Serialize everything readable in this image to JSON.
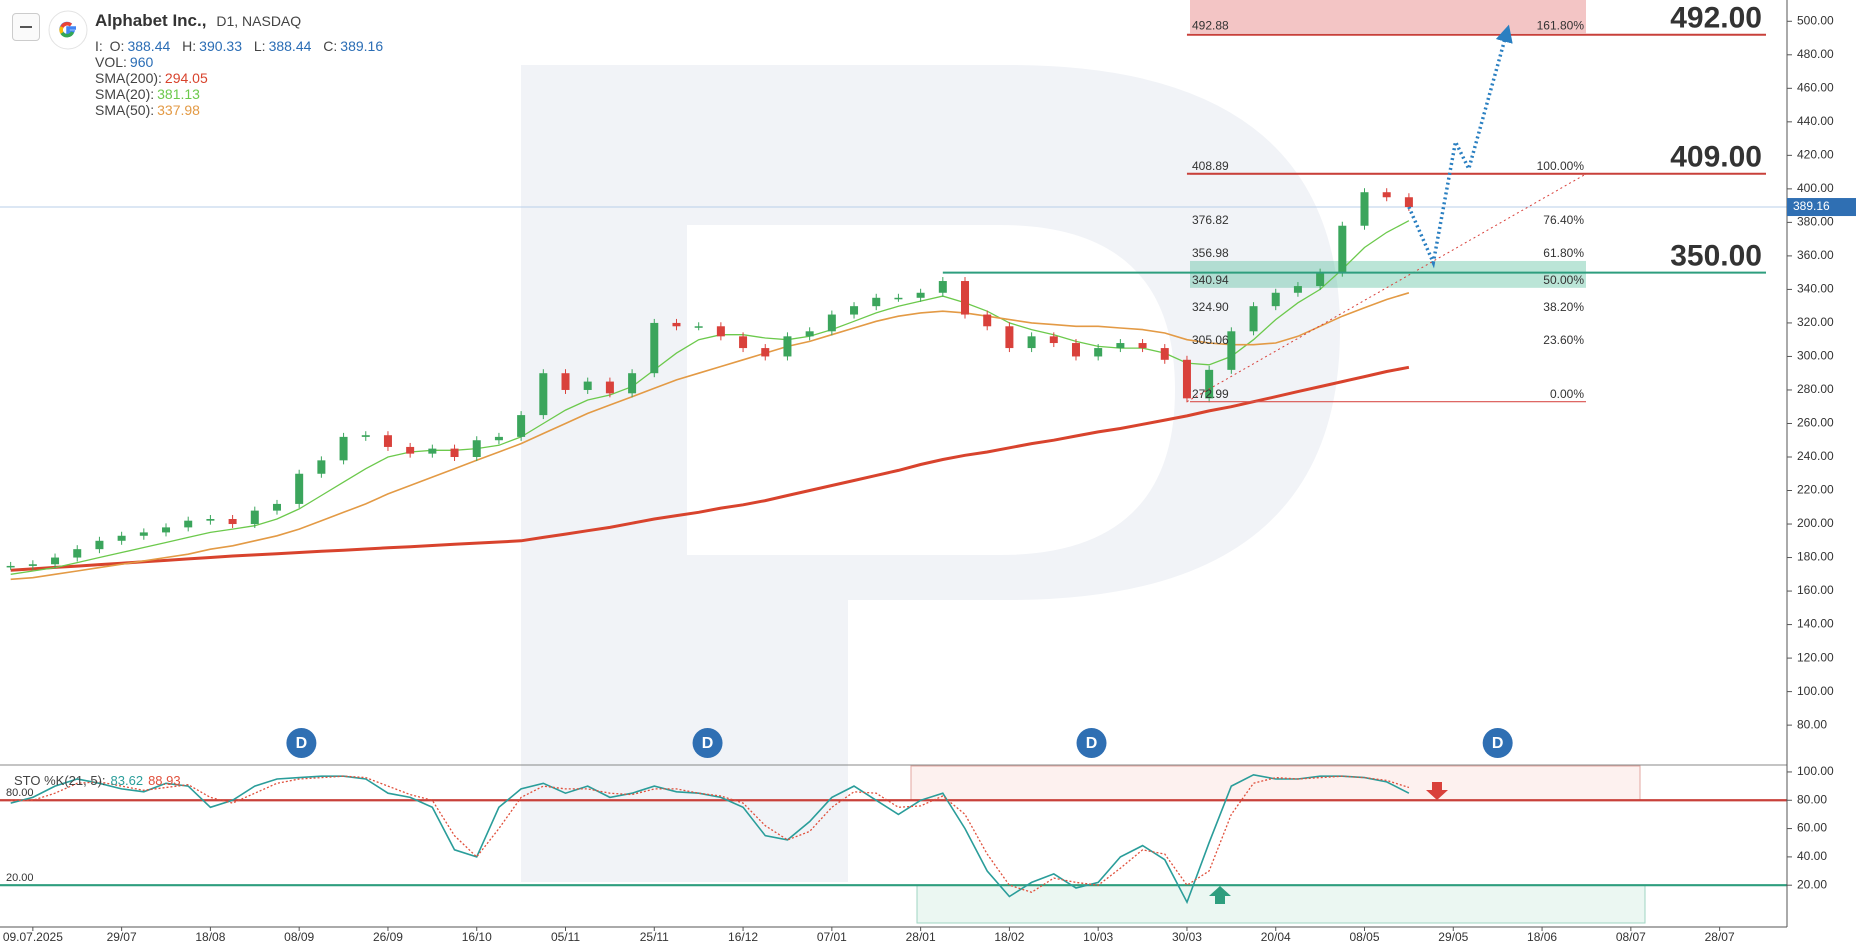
{
  "chart_data": [
    {
      "type": "candlestick",
      "title": "Alphabet Inc.,",
      "subtitle": "D1, NASDAQ",
      "info_label": "I:",
      "ohlc": [
        {
          "label": "O:",
          "value": 388.44
        },
        {
          "label": "H:",
          "value": 390.33
        },
        {
          "label": "L:",
          "value": 388.44
        },
        {
          "label": "C:",
          "value": 389.16
        }
      ],
      "volume": {
        "label": "VOL:",
        "value": 960
      },
      "categories": [
        null,
        "09.07.2025",
        null,
        null,
        null,
        "29/07",
        null,
        null,
        null,
        "18/08",
        null,
        null,
        null,
        "08/09",
        null,
        null,
        null,
        "26/09",
        null,
        null,
        null,
        "16/10",
        null,
        null,
        null,
        "05/11",
        null,
        null,
        null,
        "25/11",
        null,
        null,
        null,
        "16/12",
        null,
        null,
        null,
        "07/01",
        null,
        null,
        null,
        "28/01",
        null,
        null,
        null,
        "18/02",
        null,
        null,
        null,
        "10/03",
        null,
        null,
        null,
        "30/03",
        null,
        null,
        null,
        "20/04",
        null,
        null,
        null,
        "08/05",
        null,
        null,
        null,
        "29/05",
        null,
        null,
        null,
        "18/06",
        null,
        null,
        null,
        "08/07",
        null,
        null,
        null,
        "28/07",
        null,
        null
      ],
      "values": [
        175,
        176,
        180,
        185,
        190,
        193,
        195,
        198,
        202,
        203,
        200,
        208,
        212,
        230,
        238,
        252,
        253,
        246,
        242,
        245,
        240,
        250,
        252,
        265,
        290,
        280,
        285,
        278,
        290,
        320,
        318,
        318,
        312,
        305,
        300,
        312,
        315,
        325,
        330,
        335,
        335,
        338,
        345,
        325,
        318,
        305,
        312,
        308,
        300,
        305,
        308,
        305,
        298,
        275,
        292,
        315,
        330,
        338,
        342,
        350,
        378,
        398,
        395,
        389.16,
        null,
        null,
        null,
        null,
        null,
        null,
        null,
        null,
        null,
        null,
        null,
        null,
        null,
        null,
        null,
        null
      ],
      "up_color": "#3ba55c",
      "down_color": "#d9413b",
      "series": [
        {
          "name": "SMA(200):",
          "color": "#d8432d",
          "width": 3,
          "last": 294.05,
          "values": [
            172.4,
            173.2,
            174.1,
            174.9,
            175.8,
            176.6,
            177.5,
            178.3,
            179.2,
            180,
            180.9,
            181.6,
            182.3,
            183,
            183.7,
            184.4,
            185.1,
            185.8,
            186.5,
            187.2,
            187.9,
            188.6,
            189.3,
            190,
            192,
            194,
            196,
            198,
            200.5,
            203,
            205,
            207,
            209.5,
            211.5,
            214,
            217,
            220,
            223,
            226,
            229,
            232,
            235.5,
            238.5,
            241,
            243,
            245.5,
            248,
            250,
            252.5,
            255,
            257,
            259.5,
            262,
            264.5,
            267.5,
            270,
            273,
            276,
            279,
            282,
            285,
            288,
            291,
            293.5,
            null,
            null,
            null,
            null,
            null,
            null,
            null,
            null,
            null,
            null,
            null,
            null,
            null,
            null,
            null,
            null
          ]
        },
        {
          "name": "SMA(20):",
          "color": "#6cc94c",
          "width": 1.3,
          "last": 381.13,
          "values": [
            170,
            172,
            174,
            177,
            180,
            183,
            186,
            189,
            192,
            195,
            197,
            199,
            203,
            209,
            217,
            225,
            233,
            240,
            243,
            244,
            244,
            245,
            247,
            252,
            260,
            268,
            274,
            277,
            282,
            292,
            302,
            310,
            313,
            313,
            311,
            310,
            312,
            316,
            321,
            326,
            330,
            333,
            336,
            332,
            327,
            320,
            316,
            313,
            309,
            306,
            305,
            305,
            302,
            296,
            295,
            300,
            310,
            322,
            332,
            340,
            352,
            365,
            374,
            381,
            null,
            null,
            null,
            null,
            null,
            null,
            null,
            null,
            null,
            null,
            null,
            null,
            null,
            null,
            null,
            null
          ]
        },
        {
          "name": "SMA(50):",
          "color": "#e39a45",
          "width": 1.6,
          "last": 337.98,
          "values": [
            167,
            168,
            170,
            172,
            174,
            176,
            178,
            180,
            182,
            185,
            187,
            190,
            193,
            197,
            202,
            207,
            212,
            218,
            223,
            228,
            233,
            238,
            243,
            248,
            254,
            260,
            266,
            271,
            276,
            281,
            286,
            290,
            294,
            298,
            302,
            306,
            309,
            313,
            317,
            321,
            324,
            326,
            327,
            326,
            324,
            322,
            320,
            319,
            318,
            318,
            317,
            316,
            314,
            310,
            308,
            307,
            307,
            308,
            312,
            318,
            324,
            329,
            334,
            338,
            null,
            null,
            null,
            null,
            null,
            null,
            null,
            null,
            null,
            null,
            null,
            null,
            null,
            null,
            null,
            null
          ]
        }
      ],
      "last_price": 389.16,
      "ylim": [
        57.4,
        512.7
      ],
      "yticks": [
        {
          "value": 80,
          "label": "80.00"
        },
        {
          "value": 100,
          "label": "100.00"
        },
        {
          "value": 120,
          "label": "120.00"
        },
        {
          "value": 140,
          "label": "140.00"
        },
        {
          "value": 160,
          "label": "160.00"
        },
        {
          "value": 180,
          "label": "180.00"
        },
        {
          "value": 200,
          "label": "200.00"
        },
        {
          "value": 220,
          "label": "220.00"
        },
        {
          "value": 240,
          "label": "240.00"
        },
        {
          "value": 260,
          "label": "260.00"
        },
        {
          "value": 280,
          "label": "280.00"
        },
        {
          "value": 300,
          "label": "300.00"
        },
        {
          "value": 320,
          "label": "320.00"
        },
        {
          "value": 340,
          "label": "340.00"
        },
        {
          "value": 360,
          "label": "360.00"
        },
        {
          "value": 380,
          "label": "380.00"
        },
        {
          "value": 400,
          "label": "400.00"
        },
        {
          "value": 420,
          "label": "420.00"
        },
        {
          "value": 440,
          "label": "440.00"
        },
        {
          "value": 460,
          "label": "460.00"
        },
        {
          "value": 480,
          "label": "480.00"
        },
        {
          "value": 500,
          "label": "500.00"
        }
      ],
      "levels": [
        {
          "value": 492,
          "label": "492.00",
          "color": "#c8403a",
          "from": 53
        },
        {
          "value": 409,
          "label": "409.00",
          "color": "#c8403a",
          "from": 53
        },
        {
          "value": 350,
          "label": "350.00",
          "color": "#2e9e7e",
          "from": 42
        }
      ],
      "fib": [
        {
          "value": 492.88,
          "label": "492.88",
          "pct": 161.8,
          "pct_label": "161.80%"
        },
        {
          "value": 408.89,
          "label": "408.89",
          "pct": 100,
          "pct_label": "100.00%"
        },
        {
          "value": 376.82,
          "label": "376.82",
          "pct": 76.4,
          "pct_label": "76.40%"
        },
        {
          "value": 356.98,
          "label": "356.98",
          "pct": 61.8,
          "pct_label": "61.80%"
        },
        {
          "value": 340.94,
          "label": "340.94",
          "pct": 50,
          "pct_label": "50.00%"
        },
        {
          "value": 324.9,
          "label": "324.90",
          "pct": 38.2,
          "pct_label": "38.20%"
        },
        {
          "value": 305.06,
          "label": "305.06",
          "pct": 23.6,
          "pct_label": "23.60%"
        },
        {
          "value": 272.99,
          "label": "272.99",
          "pct": 0,
          "pct_label": "0.00%"
        }
      ],
      "forecast": {
        "color": "#2a7fc1",
        "x": [
          63,
          64.1,
          65.1,
          65.7,
          67.4
        ],
        "values": [
          389.16,
          356,
          428,
          412,
          493
        ]
      },
      "events": [
        {
          "label": "D",
          "x": 13.1
        },
        {
          "label": "D",
          "x": 31.4
        },
        {
          "label": "D",
          "x": 48.7
        },
        {
          "label": "D",
          "x": 67
        }
      ]
    },
    {
      "type": "line",
      "title": "STO %K(21, 5):",
      "series": [
        {
          "color": "#2a9d9a",
          "last": 83.62,
          "values": [
            78,
            82,
            90,
            95,
            92,
            88,
            86,
            92,
            90,
            75,
            80,
            90,
            95,
            96,
            97,
            97,
            95,
            85,
            82,
            75,
            45,
            40,
            75,
            88,
            92,
            85,
            90,
            82,
            85,
            90,
            86,
            85,
            82,
            75,
            55,
            52,
            65,
            82,
            90,
            80,
            70,
            80,
            85,
            60,
            30,
            12,
            22,
            28,
            18,
            22,
            40,
            48,
            38,
            8,
            50,
            90,
            98,
            95,
            95,
            97,
            97,
            96,
            93,
            85,
            null,
            null,
            null,
            null,
            null,
            null,
            null,
            null,
            null,
            null,
            null,
            null,
            null,
            null,
            null,
            null
          ]
        },
        {
          "color": "#e0503c",
          "last": 88.93,
          "dashed": true,
          "values": [
            80,
            80,
            85,
            92,
            93,
            90,
            87,
            89,
            91,
            82,
            78,
            85,
            92,
            95,
            96,
            97,
            96,
            90,
            84,
            80,
            55,
            40,
            60,
            82,
            90,
            88,
            88,
            85,
            84,
            88,
            88,
            85,
            83,
            78,
            62,
            52,
            58,
            75,
            86,
            85,
            75,
            76,
            83,
            70,
            42,
            20,
            15,
            25,
            22,
            20,
            32,
            45,
            42,
            20,
            30,
            70,
            92,
            96,
            95,
            96,
            97,
            96,
            94,
            89,
            null,
            null,
            null,
            null,
            null,
            null,
            null,
            null,
            null,
            null,
            null,
            null,
            null,
            null,
            null,
            null
          ]
        }
      ],
      "levels": [
        {
          "value": 80,
          "label": "80.00",
          "color": "#c8403a"
        },
        {
          "value": 20,
          "label": "20.00",
          "color": "#2e9e7e"
        }
      ],
      "ylim": [
        -6.7,
        104.2
      ],
      "yticks": [
        {
          "value": 20,
          "label": "20.00"
        },
        {
          "value": 40,
          "label": "40.00"
        },
        {
          "value": 60,
          "label": "60.00"
        },
        {
          "value": 80,
          "label": "80.00"
        },
        {
          "value": 100,
          "label": "100.00"
        }
      ]
    }
  ]
}
